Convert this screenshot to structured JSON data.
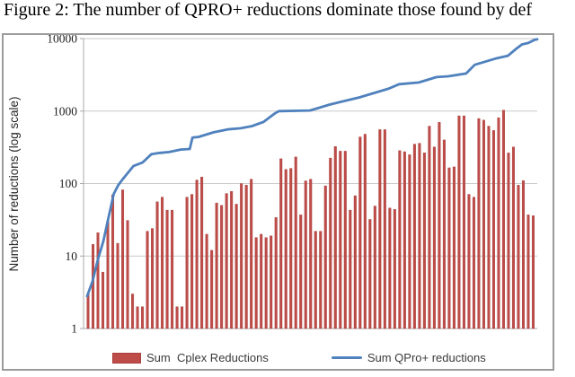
{
  "figure": {
    "caption": "Figure 2: The number of QPRO+ reductions dominate those found by def"
  },
  "chart_data": {
    "type": "bar",
    "combo": "bar+line",
    "title": "",
    "xlabel": "",
    "ylabel": "Number of reductions (log scale)",
    "y_scale": "log",
    "ylim": [
      1,
      10000
    ],
    "y_ticks": [
      {
        "v": 10000,
        "label": "10000"
      },
      {
        "v": 1000,
        "label": "1000"
      },
      {
        "v": 100,
        "label": "100"
      },
      {
        "v": 10,
        "label": "10"
      },
      {
        "v": 1,
        "label": "1"
      }
    ],
    "x_axis": {
      "tick_labels_visible": false,
      "instance_count": 91
    },
    "grid": "horizontal",
    "legend_position": "bottom",
    "colors": {
      "bar": "#be4c48",
      "bar_edge": "#a93f3c",
      "line": "#4f81bd",
      "grid": "#c9c9c9",
      "axis": "#a8a8a8"
    },
    "series": [
      {
        "name": "Sum  Cplex Reductions",
        "type": "bar",
        "color": "#be4c48",
        "values": [
          3,
          14.5,
          21,
          6,
          31,
          70,
          15,
          82,
          31,
          3,
          2,
          2,
          22,
          24,
          56,
          65,
          43,
          43,
          2,
          2,
          65,
          71,
          112,
          123,
          20,
          12,
          54,
          50,
          73,
          78,
          52,
          100,
          95,
          115,
          18,
          20,
          18,
          19,
          34,
          220,
          157,
          162,
          233,
          37,
          109,
          115,
          22,
          22,
          93,
          225,
          325,
          280,
          280,
          43,
          68,
          440,
          480,
          32,
          49,
          555,
          555,
          46,
          44,
          285,
          275,
          250,
          350,
          360,
          265,
          620,
          320,
          700,
          400,
          165,
          170,
          860,
          860,
          71,
          65,
          790,
          750,
          620,
          540,
          810,
          1030,
          265,
          320,
          95,
          110,
          37,
          36
        ]
      },
      {
        "name": "Sum QPro+ reductions",
        "type": "line",
        "color": "#4f81bd",
        "points": [
          [
            0.0,
            2.8
          ],
          [
            0.012,
            4.5
          ],
          [
            0.024,
            9
          ],
          [
            0.036,
            16
          ],
          [
            0.048,
            35
          ],
          [
            0.059,
            72
          ],
          [
            0.069,
            95
          ],
          [
            0.079,
            115
          ],
          [
            0.103,
            175
          ],
          [
            0.123,
            195
          ],
          [
            0.143,
            255
          ],
          [
            0.162,
            265
          ],
          [
            0.182,
            272
          ],
          [
            0.208,
            295
          ],
          [
            0.228,
            300
          ],
          [
            0.234,
            430
          ],
          [
            0.248,
            440
          ],
          [
            0.281,
            510
          ],
          [
            0.313,
            560
          ],
          [
            0.341,
            580
          ],
          [
            0.366,
            620
          ],
          [
            0.392,
            710
          ],
          [
            0.416,
            920
          ],
          [
            0.426,
            1000
          ],
          [
            0.495,
            1020
          ],
          [
            0.539,
            1230
          ],
          [
            0.604,
            1540
          ],
          [
            0.669,
            2030
          ],
          [
            0.693,
            2350
          ],
          [
            0.737,
            2480
          ],
          [
            0.776,
            2940
          ],
          [
            0.802,
            3020
          ],
          [
            0.842,
            3300
          ],
          [
            0.861,
            4350
          ],
          [
            0.907,
            5300
          ],
          [
            0.935,
            5800
          ],
          [
            0.954,
            7300
          ],
          [
            0.966,
            8300
          ],
          [
            0.98,
            8700
          ],
          [
            0.994,
            9600
          ],
          [
            1.0,
            9800
          ]
        ]
      }
    ]
  }
}
